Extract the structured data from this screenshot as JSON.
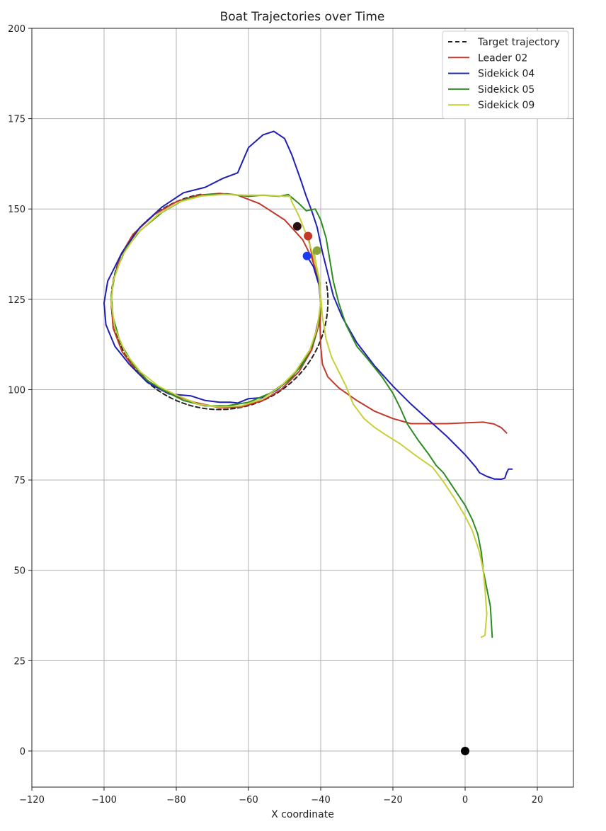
{
  "chart_data": {
    "type": "line",
    "title": "Boat Trajectories over Time",
    "xlabel": "X coordinate",
    "ylabel": "",
    "xlim": [
      -120,
      30
    ],
    "ylim": [
      -10,
      200
    ],
    "xticks": [
      -120,
      -100,
      -80,
      -60,
      -40,
      -20,
      0,
      20
    ],
    "yticks": [
      0,
      25,
      50,
      75,
      100,
      125,
      150,
      175,
      200
    ],
    "xtick_labels": [
      "−120",
      "−100",
      "−80",
      "−60",
      "−40",
      "−20",
      "0",
      "20"
    ],
    "ytick_labels": [
      "0",
      "25",
      "50",
      "75",
      "100",
      "125",
      "150",
      "175",
      "200"
    ],
    "grid": true,
    "legend_position": "top-right",
    "series": [
      {
        "name": "Target trajectory",
        "color": "#222222",
        "dash": true,
        "circle": {
          "center": [
            -68,
            124.5
          ],
          "radius": 30,
          "start_deg": 100,
          "end_deg": 10
        }
      },
      {
        "name": "Leader 02",
        "color": "#c0392b",
        "points": [
          [
            11.5,
            88
          ],
          [
            10,
            89.5
          ],
          [
            8,
            90.5
          ],
          [
            5,
            91
          ],
          [
            0,
            90.8
          ],
          [
            -5,
            90.6
          ],
          [
            -15,
            90.6
          ],
          [
            -20,
            92
          ],
          [
            -25,
            94
          ],
          [
            -30,
            97
          ],
          [
            -35,
            100.5
          ],
          [
            -38,
            103.5
          ],
          [
            -39.5,
            107
          ],
          [
            -40,
            112
          ],
          [
            -40.2,
            118
          ],
          [
            -40,
            124
          ],
          [
            -40.5,
            130
          ],
          [
            -42.5,
            136.5
          ],
          [
            -45,
            141.5
          ],
          [
            -50,
            147
          ],
          [
            -57,
            151.5
          ],
          [
            -63,
            153.8
          ],
          [
            -68,
            154.3
          ],
          [
            -74,
            153.8
          ],
          [
            -80,
            152
          ],
          [
            -86,
            148.5
          ],
          [
            -92,
            143
          ],
          [
            -95.5,
            137
          ],
          [
            -97.5,
            130
          ],
          [
            -98,
            124
          ],
          [
            -97.5,
            117
          ],
          [
            -95,
            110.5
          ],
          [
            -91,
            105
          ],
          [
            -86,
            101
          ],
          [
            -80,
            98.2
          ],
          [
            -75,
            96.5
          ],
          [
            -68,
            95
          ],
          [
            -62,
            95.2
          ],
          [
            -56,
            97
          ],
          [
            -51,
            100
          ],
          [
            -46,
            105
          ],
          [
            -42.5,
            111
          ],
          [
            -40.5,
            118
          ],
          [
            -40,
            124
          ],
          [
            -40.5,
            130
          ],
          [
            -42,
            135
          ],
          [
            -43.5,
            142.5
          ]
        ]
      },
      {
        "name": "Sidekick 04",
        "color": "#1f1fb5",
        "points": [
          [
            13,
            78
          ],
          [
            12,
            78
          ],
          [
            11.5,
            77
          ],
          [
            11,
            75.5
          ],
          [
            10,
            75.2
          ],
          [
            8,
            75.3
          ],
          [
            6,
            76
          ],
          [
            4,
            77
          ],
          [
            3,
            78.5
          ],
          [
            0,
            82
          ],
          [
            -5,
            87
          ],
          [
            -10,
            91.5
          ],
          [
            -15,
            96
          ],
          [
            -20,
            101
          ],
          [
            -25,
            106.5
          ],
          [
            -30,
            113
          ],
          [
            -34,
            120
          ],
          [
            -36.5,
            126
          ],
          [
            -38,
            132
          ],
          [
            -39.5,
            138
          ],
          [
            -41,
            145
          ],
          [
            -42.5,
            149.5
          ],
          [
            -44,
            153.5
          ],
          [
            -45.5,
            158
          ],
          [
            -48,
            165
          ],
          [
            -50,
            169.5
          ],
          [
            -53,
            171.5
          ],
          [
            -56,
            170.5
          ],
          [
            -60,
            167
          ],
          [
            -63,
            160
          ],
          [
            -67,
            158.5
          ],
          [
            -72,
            156
          ],
          [
            -78,
            154.5
          ],
          [
            -84,
            150.5
          ],
          [
            -90,
            145
          ],
          [
            -95,
            138
          ],
          [
            -99,
            130
          ],
          [
            -100,
            124
          ],
          [
            -99.5,
            118
          ],
          [
            -97,
            112
          ],
          [
            -93,
            107
          ],
          [
            -88,
            102
          ],
          [
            -82,
            98.8
          ],
          [
            -76,
            98.3
          ],
          [
            -72,
            97
          ],
          [
            -68,
            96.5
          ],
          [
            -65,
            96.5
          ],
          [
            -63,
            96.3
          ],
          [
            -60,
            97.5
          ],
          [
            -56,
            97.8
          ],
          [
            -52,
            100
          ],
          [
            -48,
            103.5
          ],
          [
            -44.5,
            108
          ],
          [
            -42,
            113
          ],
          [
            -40.5,
            120
          ],
          [
            -40,
            124
          ],
          [
            -40.5,
            129
          ],
          [
            -42,
            134
          ],
          [
            -43.8,
            137
          ]
        ]
      },
      {
        "name": "Sidekick 05",
        "color": "#2e8b22",
        "points": [
          [
            7.5,
            31.5
          ],
          [
            7.3,
            35
          ],
          [
            7,
            40
          ],
          [
            6,
            45
          ],
          [
            5,
            50
          ],
          [
            4.5,
            55
          ],
          [
            3.5,
            60
          ],
          [
            2,
            64
          ],
          [
            0,
            68
          ],
          [
            -3,
            72.5
          ],
          [
            -6,
            77
          ],
          [
            -8,
            79
          ],
          [
            -10,
            82
          ],
          [
            -13,
            86
          ],
          [
            -16,
            90.5
          ],
          [
            -18,
            95
          ],
          [
            -20,
            99
          ],
          [
            -23,
            103.5
          ],
          [
            -27,
            108.5
          ],
          [
            -30,
            112
          ],
          [
            -33,
            118
          ],
          [
            -35,
            124
          ],
          [
            -36.5,
            130
          ],
          [
            -37.5,
            136
          ],
          [
            -38.5,
            142
          ],
          [
            -40,
            147
          ],
          [
            -41.5,
            150
          ],
          [
            -44,
            149.5
          ],
          [
            -46,
            151.5
          ],
          [
            -49,
            154
          ],
          [
            -51.5,
            153.5
          ],
          [
            -56,
            153.8
          ],
          [
            -60,
            153.5
          ],
          [
            -66,
            154.2
          ],
          [
            -72,
            153.9
          ],
          [
            -78,
            152.5
          ],
          [
            -84,
            149
          ],
          [
            -90,
            144
          ],
          [
            -94,
            139
          ],
          [
            -97,
            132
          ],
          [
            -98,
            126
          ],
          [
            -97.5,
            120
          ],
          [
            -95.5,
            113
          ],
          [
            -92,
            107
          ],
          [
            -88,
            102.5
          ],
          [
            -83,
            99.5
          ],
          [
            -78,
            97
          ],
          [
            -72,
            95.5
          ],
          [
            -66,
            95.5
          ],
          [
            -60,
            96.5
          ],
          [
            -54,
            99
          ],
          [
            -49,
            102.5
          ],
          [
            -45,
            107
          ],
          [
            -42,
            113
          ],
          [
            -40.5,
            119
          ],
          [
            -40,
            124
          ],
          [
            -40.4,
            130
          ],
          [
            -41.5,
            135
          ],
          [
            -42,
            138.5
          ]
        ]
      },
      {
        "name": "Sidekick 09",
        "color": "#c7cf3a",
        "points": [
          [
            4.5,
            31.5
          ],
          [
            5.5,
            32
          ],
          [
            6,
            38
          ],
          [
            5.5,
            45
          ],
          [
            5,
            50
          ],
          [
            4,
            55
          ],
          [
            2,
            61
          ],
          [
            0,
            65
          ],
          [
            -3,
            70
          ],
          [
            -6,
            74.5
          ],
          [
            -9,
            78.5
          ],
          [
            -14,
            82
          ],
          [
            -18,
            85
          ],
          [
            -22,
            87.5
          ],
          [
            -25,
            89.5
          ],
          [
            -28,
            92
          ],
          [
            -31,
            96
          ],
          [
            -33,
            101
          ],
          [
            -35,
            105
          ],
          [
            -37,
            109
          ],
          [
            -38.5,
            114
          ],
          [
            -39.5,
            120
          ],
          [
            -40,
            126
          ],
          [
            -40.5,
            131
          ],
          [
            -42,
            137
          ],
          [
            -44,
            143
          ],
          [
            -46,
            148
          ],
          [
            -48,
            152
          ],
          [
            -48.5,
            153.5
          ],
          [
            -50,
            153.5
          ],
          [
            -55,
            153.8
          ],
          [
            -61,
            153.8
          ],
          [
            -67,
            154
          ],
          [
            -73,
            153.6
          ],
          [
            -79,
            152
          ],
          [
            -85,
            148.5
          ],
          [
            -91,
            143
          ],
          [
            -95,
            137
          ],
          [
            -97.5,
            130
          ],
          [
            -98,
            124
          ],
          [
            -97,
            117
          ],
          [
            -94,
            110
          ],
          [
            -90,
            105
          ],
          [
            -85,
            101
          ],
          [
            -80,
            98.5
          ],
          [
            -74,
            96
          ],
          [
            -68,
            95.2
          ],
          [
            -62,
            95.5
          ],
          [
            -56,
            97.5
          ],
          [
            -51,
            101
          ],
          [
            -47,
            105
          ],
          [
            -43,
            111
          ],
          [
            -41,
            117
          ],
          [
            -40,
            124
          ],
          [
            -40.5,
            131
          ],
          [
            -41.5,
            136
          ],
          [
            -41.8,
            139
          ]
        ]
      }
    ],
    "markers": [
      {
        "name": "",
        "x": -46.5,
        "y": 145.2,
        "color": "#2a1010"
      },
      {
        "name": "",
        "x": -43.5,
        "y": 142.5,
        "color": "#c0392b"
      },
      {
        "name": "",
        "x": -41,
        "y": 138.5,
        "color": "#8aa53a"
      },
      {
        "name": "",
        "x": -43.8,
        "y": 137,
        "color": "#1a3cf0"
      },
      {
        "name": "",
        "x": 0,
        "y": 0,
        "color": "#000000"
      }
    ]
  }
}
